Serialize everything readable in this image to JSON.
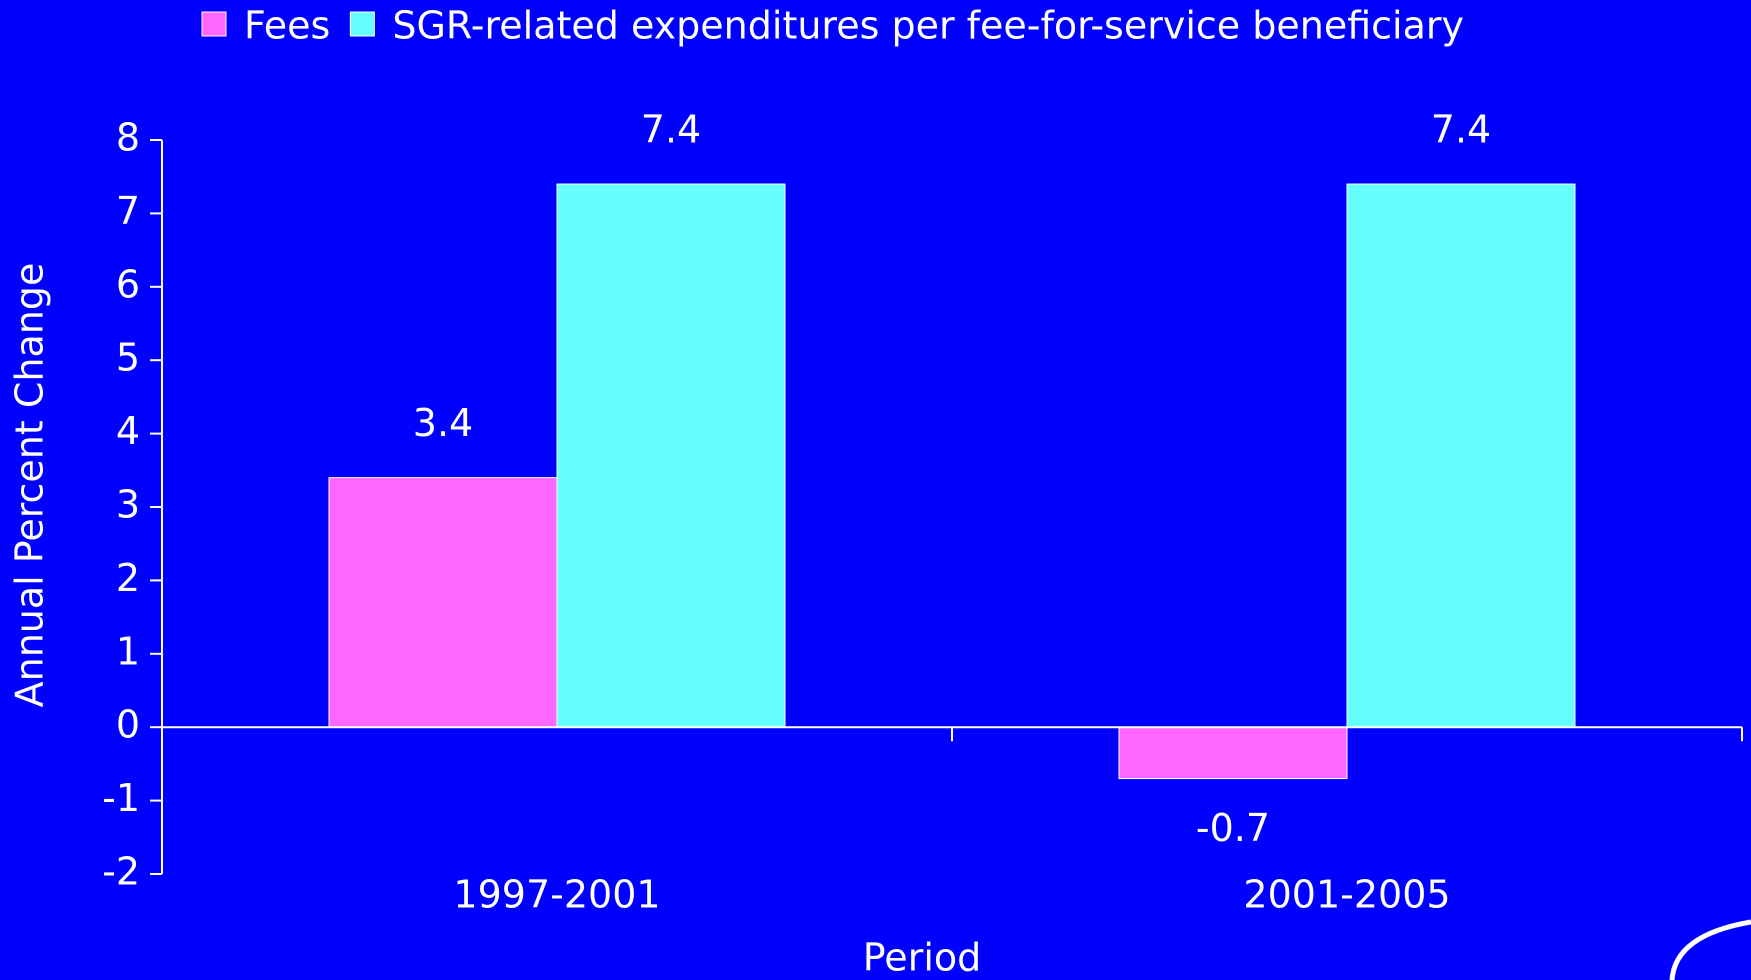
{
  "chart_data": {
    "type": "bar",
    "xlabel": "Period",
    "ylabel": "Annual Percent Change",
    "categories": [
      "1997-2001",
      "2001-2005"
    ],
    "series": [
      {
        "name": "Fees",
        "color": "#ff66ff",
        "values": [
          3.4,
          -0.7
        ]
      },
      {
        "name": "SGR-related expenditures per fee-for-service beneficiary",
        "color": "#66ffff",
        "values": [
          7.4,
          7.4
        ]
      }
    ],
    "ylim": [
      -2,
      8
    ],
    "yticks": [
      -2,
      -1,
      0,
      1,
      2,
      3,
      4,
      5,
      6,
      7,
      8
    ],
    "legend": "top",
    "background": "#0000ff"
  }
}
